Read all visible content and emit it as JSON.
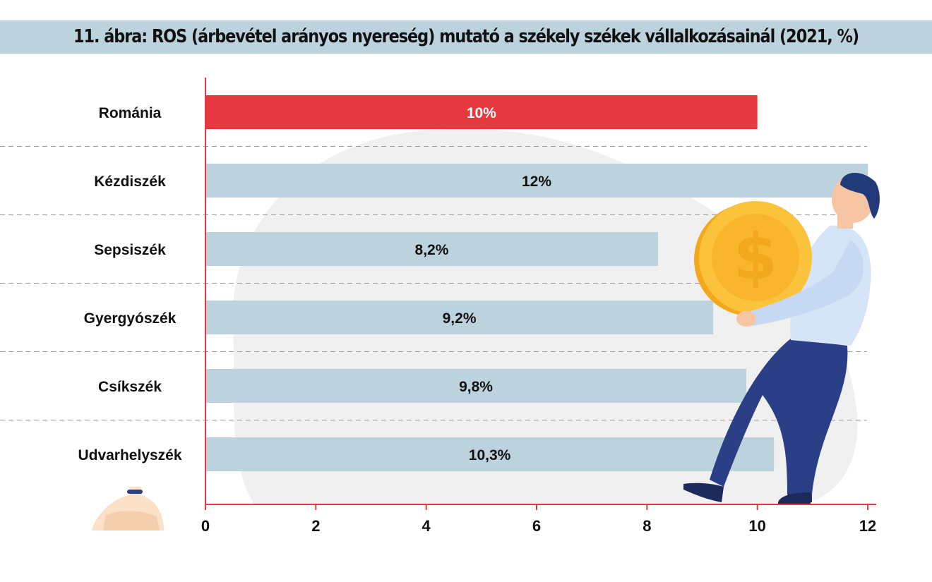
{
  "chart_data": {
    "type": "bar",
    "orientation": "horizontal",
    "title": "11. ábra: ROS (árbevétel arányos nyereség) mutató a székely székek vállalkozásainál (2021, %)",
    "categories": [
      "Románia",
      "Kézdiszék",
      "Sepsiszék",
      "Gyergyószék",
      "Csíkszék",
      "Udvarhelyszék"
    ],
    "values": [
      10,
      12,
      8.2,
      9.2,
      9.8,
      10.3
    ],
    "value_labels": [
      "10%",
      "12%",
      "8,2%",
      "9,2%",
      "9,8%",
      "10,3%"
    ],
    "highlight_index": 0,
    "xlim": [
      0,
      12
    ],
    "xticks": [
      0,
      2,
      4,
      6,
      8,
      10,
      12
    ],
    "xlabel": "",
    "ylabel": "",
    "grid": "dashed separators between categories",
    "colors": {
      "highlight_bar": "#e5393f",
      "bar": "#bcd3de",
      "axis": "#e5393f",
      "separator": "#9a9a9a",
      "highlight_text": "#ffffff",
      "bar_text": "#111111",
      "title_band": "#bcd3de"
    }
  },
  "decorations": {
    "illustration": "man-carrying-gold-coin-icon",
    "money-bag": "money-bag-icon"
  }
}
